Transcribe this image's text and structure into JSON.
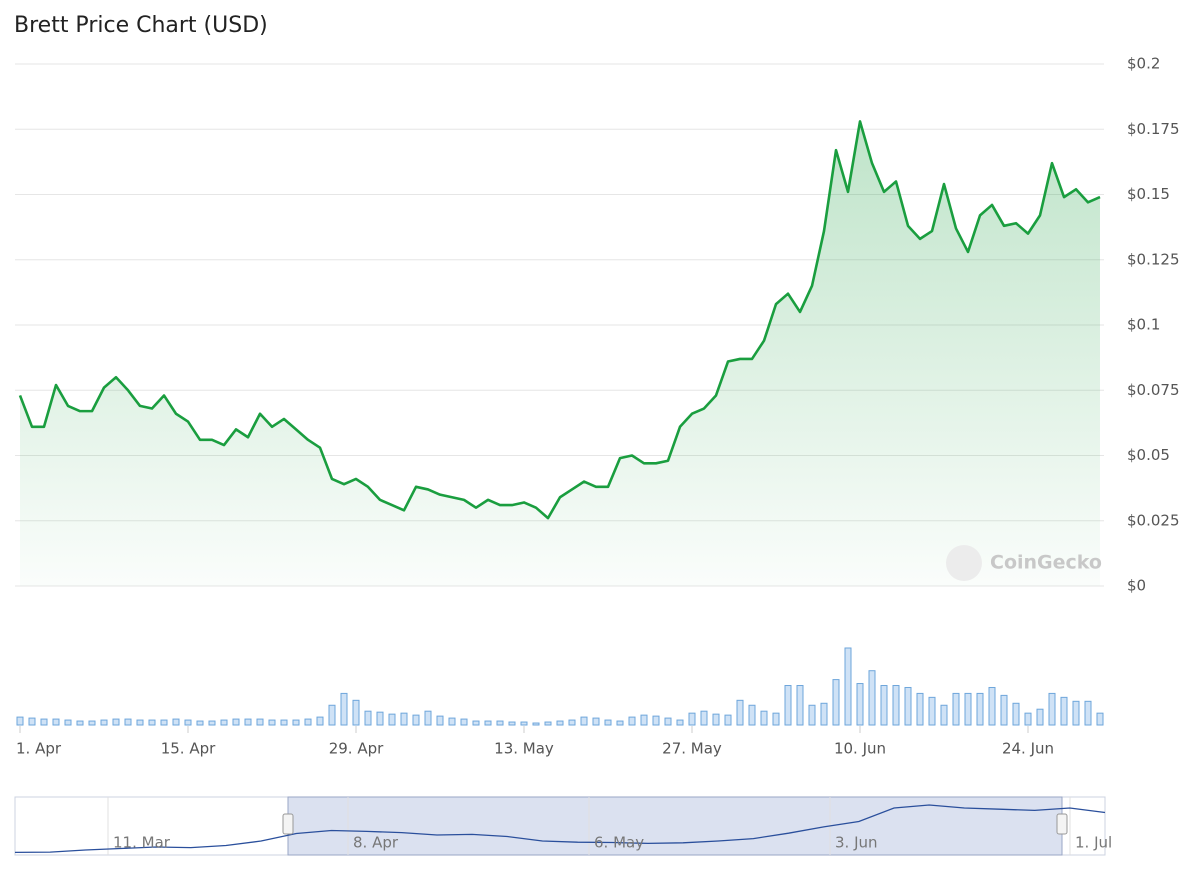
{
  "chart_data": {
    "type": "line",
    "title": "Brett Price Chart (USD)",
    "watermark": "CoinGecko",
    "color": "#1a9e3f",
    "grid": true,
    "categories": [
      "1. Apr",
      null,
      null,
      null,
      null,
      null,
      null,
      null,
      null,
      null,
      null,
      null,
      null,
      null,
      "15. Apr",
      null,
      null,
      null,
      null,
      null,
      null,
      null,
      null,
      null,
      null,
      null,
      null,
      null,
      "29. Apr",
      null,
      null,
      null,
      null,
      null,
      null,
      null,
      null,
      null,
      null,
      null,
      null,
      null,
      "13. May",
      null,
      null,
      null,
      null,
      null,
      null,
      null,
      null,
      null,
      null,
      null,
      null,
      null,
      "27. May",
      null,
      null,
      null,
      null,
      null,
      null,
      null,
      null,
      null,
      null,
      null,
      null,
      null,
      "10. Jun",
      null,
      null,
      null,
      null,
      null,
      null,
      null,
      null,
      null,
      null,
      null,
      null,
      null,
      "24. Jun",
      null,
      null,
      null,
      null,
      null,
      null
    ],
    "values": [
      0.073,
      0.061,
      0.061,
      0.077,
      0.069,
      0.067,
      0.067,
      0.076,
      0.08,
      0.075,
      0.069,
      0.068,
      0.073,
      0.066,
      0.063,
      0.056,
      0.056,
      0.054,
      0.06,
      0.057,
      0.066,
      0.061,
      0.064,
      0.06,
      0.056,
      0.053,
      0.041,
      0.039,
      0.041,
      0.038,
      0.033,
      0.031,
      0.029,
      0.038,
      0.037,
      0.035,
      0.034,
      0.033,
      0.03,
      0.033,
      0.031,
      0.031,
      0.032,
      0.03,
      0.026,
      0.034,
      0.037,
      0.04,
      0.038,
      0.038,
      0.049,
      0.05,
      0.047,
      0.047,
      0.048,
      0.061,
      0.066,
      0.068,
      0.073,
      0.086,
      0.087,
      0.087,
      0.094,
      0.108,
      0.112,
      0.105,
      0.115,
      0.136,
      0.167,
      0.151,
      0.178,
      0.162,
      0.151,
      0.155,
      0.138,
      0.133,
      0.136,
      0.154,
      0.137,
      0.128,
      0.142,
      0.146,
      0.138,
      0.139,
      0.135,
      0.142,
      0.162,
      0.149,
      0.152,
      0.147,
      0.149
    ],
    "volume": [
      8,
      7,
      6,
      6,
      5,
      4,
      4,
      5,
      6,
      6,
      5,
      5,
      5,
      6,
      5,
      4,
      4,
      5,
      6,
      6,
      6,
      5,
      5,
      5,
      6,
      8,
      20,
      32,
      25,
      14,
      13,
      11,
      12,
      10,
      14,
      9,
      7,
      6,
      4,
      4,
      4,
      3,
      3,
      2,
      3,
      4,
      5,
      8,
      7,
      5,
      4,
      8,
      10,
      9,
      7,
      5,
      12,
      14,
      11,
      10,
      25,
      20,
      14,
      12,
      40,
      40,
      20,
      22,
      46,
      78,
      42,
      55,
      40,
      40,
      38,
      32,
      28,
      20,
      32,
      32,
      32,
      38,
      30,
      22,
      12,
      16,
      32,
      28,
      24,
      24,
      12
    ],
    "ylim": [
      0,
      0.2
    ],
    "yticks": [
      {
        "value": 0,
        "label": "$0"
      },
      {
        "value": 0.025,
        "label": "$0.025"
      },
      {
        "value": 0.05,
        "label": "$0.05"
      },
      {
        "value": 0.075,
        "label": "$0.075"
      },
      {
        "value": 0.1,
        "label": "$0.1"
      },
      {
        "value": 0.125,
        "label": "$0.125"
      },
      {
        "value": 0.15,
        "label": "$0.15"
      },
      {
        "value": 0.175,
        "label": "$0.175"
      },
      {
        "value": 0.2,
        "label": "$0.2"
      }
    ],
    "navigator": {
      "labels": [
        "11. Mar",
        "8. Apr",
        "6. May",
        "3. Jun",
        "1. Jul"
      ],
      "values": [
        0.002,
        0.003,
        0.01,
        0.015,
        0.02,
        0.018,
        0.025,
        0.04,
        0.065,
        0.075,
        0.072,
        0.068,
        0.06,
        0.062,
        0.055,
        0.04,
        0.036,
        0.035,
        0.032,
        0.034,
        0.04,
        0.048,
        0.066,
        0.087,
        0.105,
        0.15,
        0.16,
        0.15,
        0.146,
        0.142,
        0.15,
        0.135
      ]
    }
  }
}
